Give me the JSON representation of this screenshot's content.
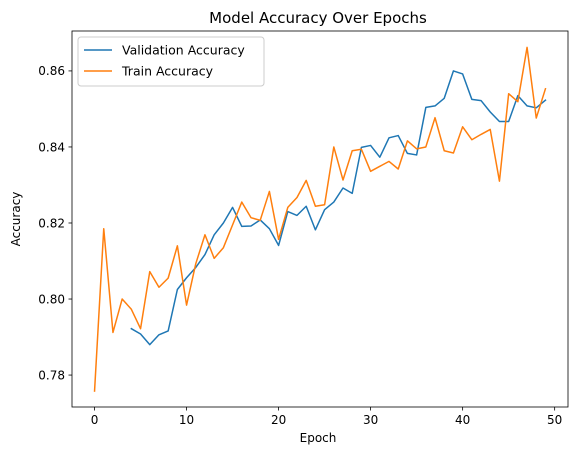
{
  "chart_data": {
    "type": "line",
    "title": "Model Accuracy Over Epochs",
    "xlabel": "Epoch",
    "ylabel": "Accuracy",
    "xlim": [
      -2.45,
      51.45
    ],
    "ylim": [
      0.7716,
      0.8705
    ],
    "xticks": [
      0,
      10,
      20,
      30,
      40,
      50
    ],
    "xtick_labels": [
      "0",
      "10",
      "20",
      "30",
      "40",
      "50"
    ],
    "yticks": [
      0.78,
      0.8,
      0.82,
      0.84,
      0.86
    ],
    "ytick_labels": [
      "0.78",
      "0.80",
      "0.82",
      "0.84",
      "0.86"
    ],
    "grid": false,
    "legend_position": "upper-left",
    "series": [
      {
        "name": "Validation Accuracy",
        "color": "#1f77b4",
        "x": [
          4,
          5,
          6,
          7,
          8,
          9,
          10,
          11,
          12,
          13,
          14,
          15,
          16,
          17,
          18,
          19,
          20,
          21,
          22,
          23,
          24,
          25,
          26,
          27,
          28,
          29,
          30,
          31,
          32,
          33,
          34,
          35,
          36,
          37,
          38,
          39,
          40,
          41,
          42,
          43,
          44,
          45,
          46,
          47,
          48,
          49
        ],
        "y": [
          0.7922,
          0.7908,
          0.788,
          0.7906,
          0.7916,
          0.8025,
          0.8056,
          0.8083,
          0.8117,
          0.8169,
          0.82,
          0.8241,
          0.8191,
          0.8192,
          0.8208,
          0.8185,
          0.8141,
          0.823,
          0.822,
          0.8244,
          0.8182,
          0.8235,
          0.8255,
          0.8292,
          0.8278,
          0.8399,
          0.8404,
          0.8373,
          0.8424,
          0.843,
          0.8383,
          0.8379,
          0.8504,
          0.8508,
          0.8528,
          0.86,
          0.8592,
          0.8525,
          0.8522,
          0.8492,
          0.8467,
          0.8467,
          0.8535,
          0.8508,
          0.8503,
          0.8523
        ]
      },
      {
        "name": "Train Accuracy",
        "color": "#ff7f0e",
        "x": [
          0,
          1,
          2,
          3,
          4,
          5,
          6,
          7,
          8,
          9,
          10,
          11,
          12,
          13,
          14,
          15,
          16,
          17,
          18,
          19,
          20,
          21,
          22,
          23,
          24,
          25,
          26,
          27,
          28,
          29,
          30,
          31,
          32,
          33,
          34,
          35,
          36,
          37,
          38,
          39,
          40,
          41,
          42,
          43,
          44,
          45,
          46,
          47,
          48,
          49
        ],
        "y": [
          0.7758,
          0.8185,
          0.7912,
          0.8,
          0.7973,
          0.7922,
          0.8072,
          0.8031,
          0.8055,
          0.814,
          0.7984,
          0.8093,
          0.8169,
          0.8107,
          0.8135,
          0.8195,
          0.8255,
          0.8214,
          0.8207,
          0.8283,
          0.8157,
          0.8241,
          0.8267,
          0.8312,
          0.8244,
          0.8248,
          0.84,
          0.8313,
          0.839,
          0.8394,
          0.8336,
          0.8349,
          0.8362,
          0.8342,
          0.8416,
          0.8395,
          0.84,
          0.8477,
          0.839,
          0.8384,
          0.8453,
          0.8419,
          0.8433,
          0.8446,
          0.831,
          0.854,
          0.8519,
          0.8662,
          0.8476,
          0.8553
        ]
      }
    ]
  }
}
